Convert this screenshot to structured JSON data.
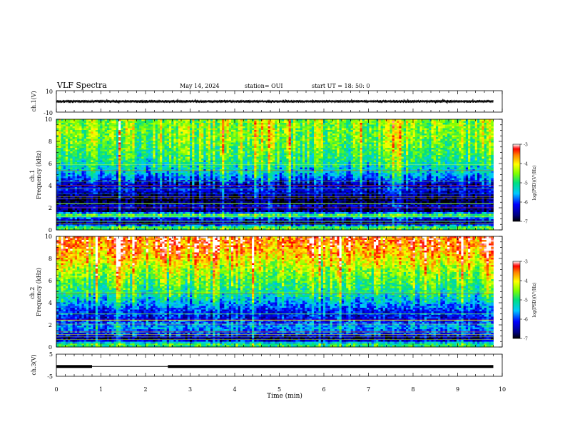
{
  "header": {
    "title": "VLF Spectra",
    "date": "May 14, 2024",
    "station": "station= OUI",
    "start": "start  UT  =   18: 50: 0"
  },
  "chart_data": [
    {
      "type": "line",
      "name": "ch1-waveform",
      "ylabel": "ch.1(V)",
      "ylim": [
        -10,
        10
      ],
      "ytick_labels": [
        "10",
        "-10"
      ],
      "xlim": [
        0,
        10
      ],
      "approx_band": [
        -1.5,
        1.5
      ],
      "data_extent_x": [
        0,
        9.8
      ]
    },
    {
      "type": "heatmap",
      "name": "ch1-spectrogram",
      "ylabel": "ch.1\nFrequency (kHz)",
      "ylim": [
        0,
        10
      ],
      "ytick_labels": [
        "0",
        "2",
        "4",
        "6",
        "8",
        "10"
      ],
      "xlim": [
        0,
        10
      ],
      "data_extent_x": [
        0,
        9.8
      ],
      "dominant_level_by_freq_khz": [
        {
          "f": 0.25,
          "v": -4.8
        },
        {
          "f": 0.6,
          "v": -6.9
        },
        {
          "f": 1.0,
          "v": -6.2
        },
        {
          "f": 1.35,
          "v": -4.6
        },
        {
          "f": 1.7,
          "v": -6.8
        },
        {
          "f": 2.1,
          "v": -6.3
        },
        {
          "f": 2.6,
          "v": -6.9
        },
        {
          "f": 3.1,
          "v": -6.6
        },
        {
          "f": 3.6,
          "v": -6.2
        },
        {
          "f": 4.1,
          "v": -6.4
        },
        {
          "f": 4.7,
          "v": -5.8
        },
        {
          "f": 5.4,
          "v": -5.3
        },
        {
          "f": 6.2,
          "v": -5.0
        },
        {
          "f": 7.0,
          "v": -4.8
        },
        {
          "f": 8.0,
          "v": -4.6
        },
        {
          "f": 9.0,
          "v": -4.5
        },
        {
          "f": 9.8,
          "v": -4.5
        }
      ]
    },
    {
      "type": "heatmap",
      "name": "ch2-spectrogram",
      "ylabel": "ch.2\nFrequency (kHz)",
      "ylim": [
        0,
        10
      ],
      "ytick_labels": [
        "0",
        "2",
        "4",
        "6",
        "8",
        "10"
      ],
      "xlim": [
        0,
        10
      ],
      "data_extent_x": [
        0,
        9.8
      ],
      "dominant_level_by_freq_khz": [
        {
          "f": 0.25,
          "v": -4.9
        },
        {
          "f": 0.7,
          "v": -6.8
        },
        {
          "f": 1.2,
          "v": -6.0
        },
        {
          "f": 1.8,
          "v": -5.6
        },
        {
          "f": 2.5,
          "v": -6.2
        },
        {
          "f": 3.2,
          "v": -6.1
        },
        {
          "f": 3.8,
          "v": -5.7
        },
        {
          "f": 4.5,
          "v": -5.2
        },
        {
          "f": 5.3,
          "v": -4.9
        },
        {
          "f": 6.2,
          "v": -4.6
        },
        {
          "f": 7.0,
          "v": -4.3
        },
        {
          "f": 8.0,
          "v": -3.9
        },
        {
          "f": 9.0,
          "v": -3.5
        },
        {
          "f": 9.8,
          "v": -3.4
        }
      ]
    },
    {
      "type": "line",
      "name": "ch3-waveform",
      "ylabel": "ch.3(V)",
      "ylim": [
        -5,
        5
      ],
      "ytick_labels": [
        "5",
        "-5"
      ],
      "xlim": [
        0,
        10
      ],
      "xlabel": "Time  (min)",
      "xtick_labels": [
        "0",
        "1",
        "2",
        "3",
        "4",
        "5",
        "6",
        "7",
        "8",
        "9",
        "10"
      ],
      "segments": [
        {
          "x": [
            0,
            0.8
          ],
          "y": 0.4,
          "thickness": "thick"
        },
        {
          "x": [
            0.8,
            2.5
          ],
          "y": 0.4,
          "thickness": "thin"
        },
        {
          "x": [
            2.5,
            9.8
          ],
          "y": 0.4,
          "thickness": "thick"
        }
      ]
    }
  ],
  "colorbar": {
    "label": "log(PSD)(V²/Hz)",
    "range": [
      -7,
      -3
    ],
    "tick_labels": [
      "-3",
      "-4",
      "-5",
      "-6",
      "-7"
    ]
  }
}
